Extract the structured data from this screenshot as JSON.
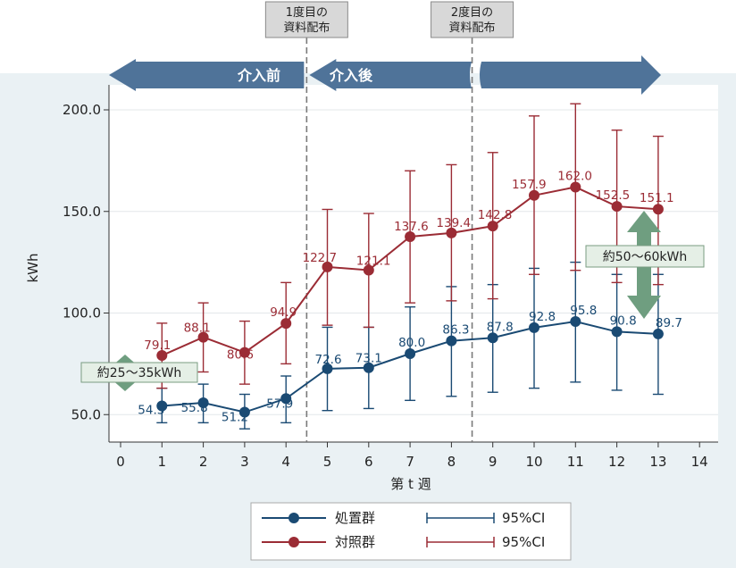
{
  "chart_data": {
    "type": "line",
    "xlabel": "第 t 週",
    "ylabel": "kWh",
    "xlim": [
      0,
      14
    ],
    "ylim": [
      40,
      210
    ],
    "x_ticks": [
      0,
      1,
      2,
      3,
      4,
      5,
      6,
      7,
      8,
      9,
      10,
      11,
      12,
      13,
      14
    ],
    "y_ticks": [
      50,
      100,
      150,
      200
    ],
    "y_tick_labels": [
      "50.0",
      "100.0",
      "150.0",
      "200.0"
    ],
    "series": [
      {
        "name": "処置群",
        "color": "#1a4a73",
        "x": [
          1,
          2,
          3,
          4,
          5,
          6,
          7,
          8,
          9,
          10,
          11,
          12,
          13
        ],
        "values": [
          54.3,
          55.8,
          51.2,
          57.9,
          72.6,
          73.1,
          80.0,
          86.3,
          87.8,
          92.8,
          95.8,
          90.8,
          89.7
        ],
        "labels": [
          "54.3",
          "55.8",
          "51.2",
          "57.9",
          "72.6",
          "73.1",
          "80.0",
          "86.3",
          "87.8",
          "92.8",
          "95.8",
          "90.8",
          "89.7"
        ],
        "ci_low": [
          46,
          46,
          43,
          46,
          52,
          53,
          57,
          59,
          61,
          63,
          66,
          62,
          60
        ],
        "ci_high": [
          63,
          65,
          60,
          69,
          93,
          93,
          103,
          113,
          114,
          122,
          125,
          119,
          119
        ]
      },
      {
        "name": "対照群",
        "color": "#9b2c35",
        "x": [
          1,
          2,
          3,
          4,
          5,
          6,
          7,
          8,
          9,
          10,
          11,
          12,
          13
        ],
        "values": [
          79.1,
          88.1,
          80.6,
          94.9,
          122.7,
          121.1,
          137.6,
          139.4,
          142.8,
          157.9,
          162.0,
          152.5,
          151.1
        ],
        "labels": [
          "79.1",
          "88.1",
          "80.6",
          "94.9",
          "122.7",
          "121.1",
          "137.6",
          "139.4",
          "142.8",
          "157.9",
          "162.0",
          "152.5",
          "151.1"
        ],
        "ci_low": [
          63,
          71,
          65,
          75,
          94,
          93,
          105,
          106,
          107,
          119,
          121,
          115,
          114
        ],
        "ci_high": [
          95,
          105,
          96,
          115,
          151,
          149,
          170,
          173,
          179,
          197,
          203,
          190,
          187
        ]
      }
    ],
    "vlines": [
      4.5,
      8.5
    ],
    "legend": {
      "placement": "bottom",
      "entries": [
        {
          "label": "処置群",
          "ci_label": "95%CI"
        },
        {
          "label": "対照群",
          "ci_label": "95%CI"
        }
      ]
    }
  },
  "annotations": {
    "release1": "1度目の\n資料配布",
    "release2": "2度目の\n資料配布",
    "pre_label": "介入前",
    "post_label": "介入後",
    "gap_small": "約25～35kWh",
    "gap_large": "約50～60kWh"
  },
  "colors": {
    "background": "#eaf1f4",
    "banner": "#4f7399",
    "treatment": "#1a4a73",
    "control": "#9b2c35",
    "gap_arrow": "#6f9e80",
    "callout_fill": "#e5efe6",
    "callout_border": "#7a9c82",
    "release_box": "#d8d8d8"
  }
}
